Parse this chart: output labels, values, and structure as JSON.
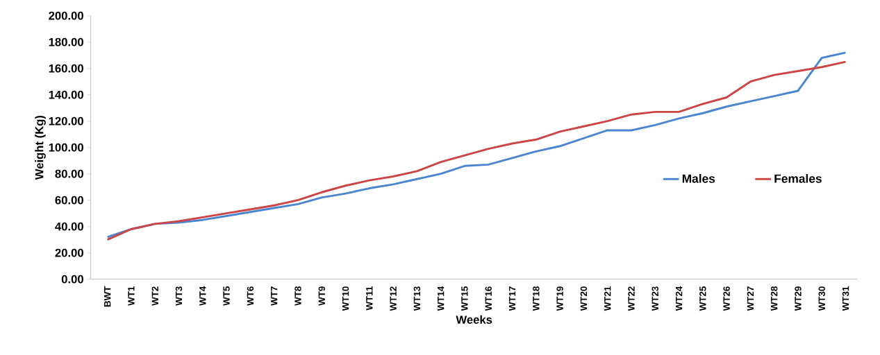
{
  "chart_data": {
    "type": "line",
    "xlabel": "Weeks",
    "ylabel": "Weight (Kg)",
    "categories": [
      "BWT",
      "WT1",
      "WT2",
      "WT3",
      "WT4",
      "WT5",
      "WT6",
      "WT7",
      "WT8",
      "WT9",
      "WT10",
      "WT11",
      "WT12",
      "WT13",
      "WT14",
      "WT15",
      "WT16",
      "WT17",
      "WT18",
      "WT19",
      "WT20",
      "WT21",
      "WT22",
      "WT23",
      "WT24",
      "WT25",
      "WT26",
      "WT27",
      "WT28",
      "WT29",
      "WT30",
      "WT31"
    ],
    "series": [
      {
        "name": "Males",
        "color": "#4a86d0",
        "values": [
          32,
          38,
          42,
          43,
          45,
          48,
          51,
          54,
          57,
          62,
          65,
          69,
          72,
          76,
          80,
          86,
          87,
          92,
          97,
          101,
          107,
          113,
          113,
          117,
          122,
          126,
          131,
          135,
          139,
          143,
          168,
          172
        ]
      },
      {
        "name": "Females",
        "color": "#cc4444",
        "values": [
          30,
          38,
          42,
          44,
          47,
          50,
          53,
          56,
          60,
          66,
          71,
          75,
          78,
          82,
          89,
          94,
          99,
          103,
          106,
          112,
          116,
          120,
          125,
          127,
          127,
          133,
          138,
          150,
          155,
          158,
          161,
          165
        ]
      }
    ],
    "ylim": [
      0,
      200
    ],
    "yticks": [
      {
        "value": 0,
        "label": "0.00"
      },
      {
        "value": 20,
        "label": "20.00"
      },
      {
        "value": 40,
        "label": "40.00"
      },
      {
        "value": 60,
        "label": "60.00"
      },
      {
        "value": 80,
        "label": "80.00"
      },
      {
        "value": 100,
        "label": "100.00"
      },
      {
        "value": 120,
        "label": "120.00"
      },
      {
        "value": 140,
        "label": "140.00"
      },
      {
        "value": 160,
        "label": "160.00"
      },
      {
        "value": 180,
        "label": "180.00"
      },
      {
        "value": 200,
        "label": "200.00"
      }
    ],
    "grid": false,
    "legend": "right",
    "marker": "none",
    "line_style": "solid"
  }
}
